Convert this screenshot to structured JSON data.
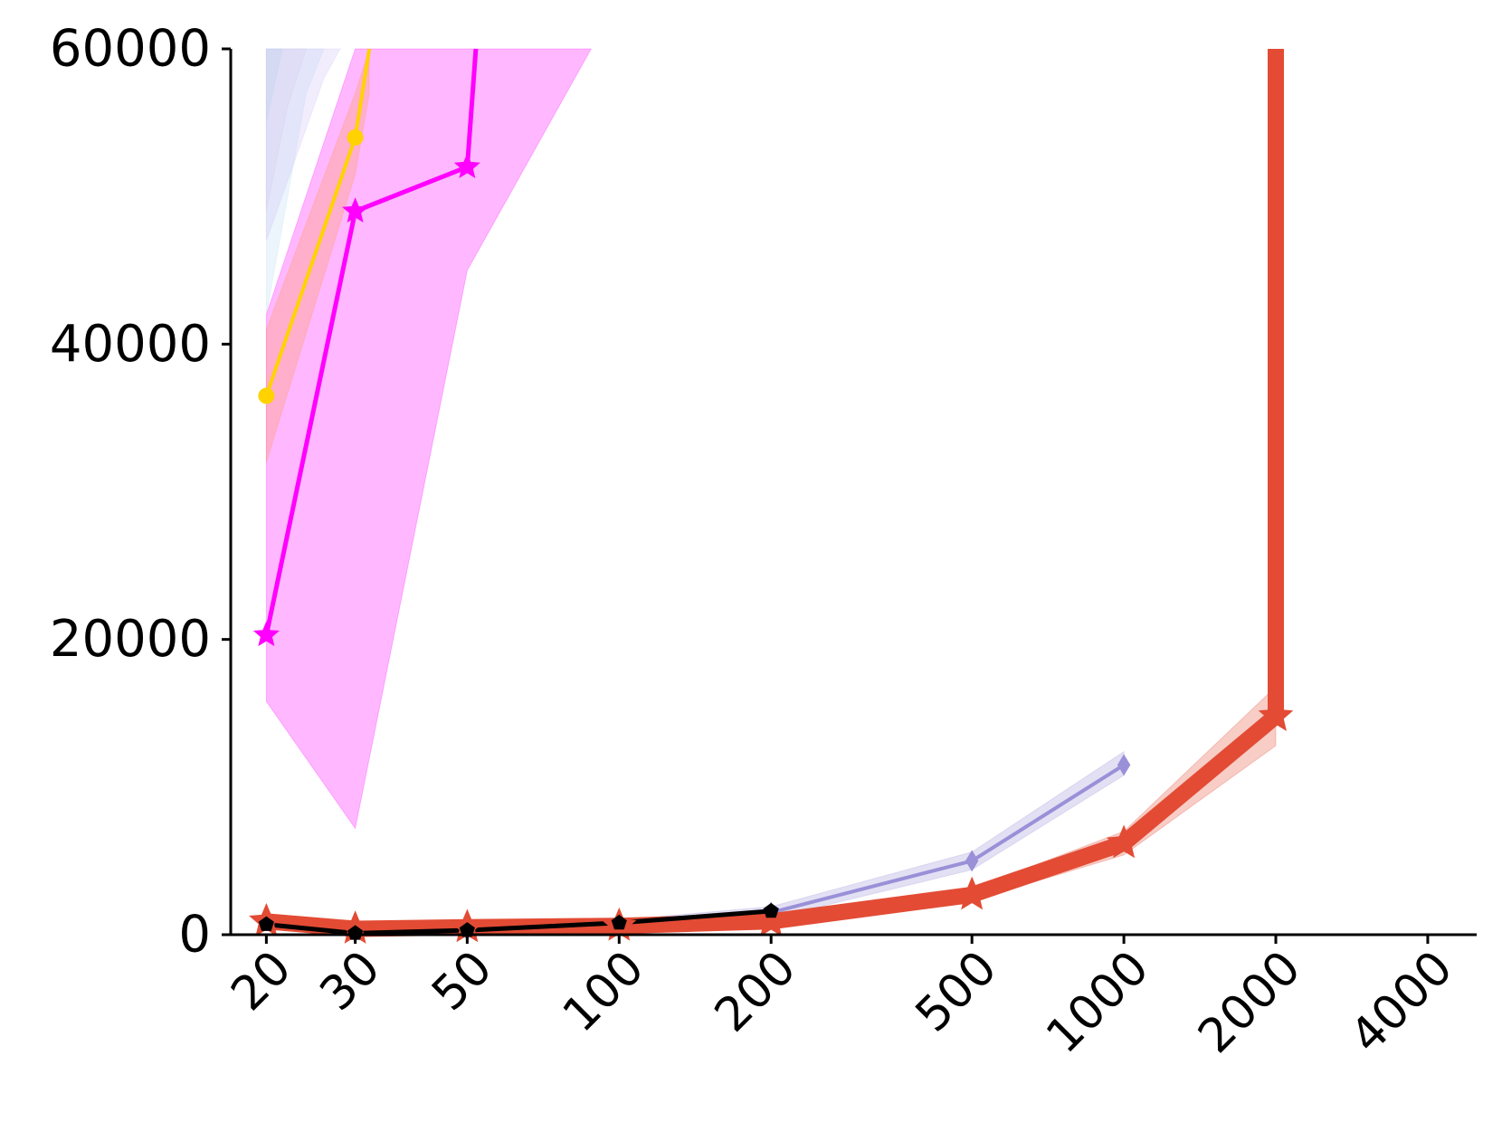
{
  "chart_data": {
    "type": "line",
    "title": "",
    "xlabel": "",
    "ylabel": "",
    "x_scale": "log",
    "xlim": [
      17,
      5000
    ],
    "ylim": [
      0,
      60000
    ],
    "grid": false,
    "x_ticks": [
      20,
      30,
      50,
      100,
      200,
      500,
      1000,
      2000,
      4000
    ],
    "x_tick_labels": [
      "20",
      "30",
      "50",
      "100",
      "200",
      "500",
      "1000",
      "2000",
      "4000"
    ],
    "y_ticks": [
      0,
      20000,
      40000,
      60000
    ],
    "y_tick_labels": [
      "0",
      "20000",
      "40000",
      "60000"
    ],
    "series": [
      {
        "color": "#9ad7e6",
        "marker": "none",
        "line": false,
        "band_x": [
          20,
          21.5
        ],
        "band_low": [
          55000,
          60000
        ],
        "band_high": [
          60000,
          60000
        ],
        "x": [],
        "values": []
      },
      {
        "color": "#bcdcf5",
        "marker": "none",
        "line": false,
        "band_x": [
          20,
          24,
          26
        ],
        "band_low": [
          42000,
          57000,
          60000
        ],
        "band_high": [
          60000,
          60000,
          60000
        ],
        "x": [],
        "values": []
      },
      {
        "color": "#d8cfe8",
        "marker": "none",
        "line": false,
        "band_x": [
          20,
          22,
          24
        ],
        "band_low": [
          49000,
          56000,
          60000
        ],
        "band_high": [
          60000,
          60000,
          60000
        ],
        "x": [],
        "values": []
      },
      {
        "color": "#cdbff5",
        "marker": "none",
        "line": false,
        "band_x": [
          20,
          26,
          28
        ],
        "band_low": [
          47000,
          58000,
          60000
        ],
        "band_high": [
          60000,
          60000,
          60000
        ],
        "x": [],
        "values": []
      },
      {
        "color": "#ffd200",
        "marker": "circle",
        "line": true,
        "line_width": 4,
        "x": [
          20,
          30,
          32
        ],
        "values": [
          36500,
          54000,
          60000
        ],
        "marker_mask": [
          true,
          true,
          false
        ],
        "band_x": [
          20,
          30,
          32
        ],
        "band_low": [
          32000,
          51500,
          57000
        ],
        "band_high": [
          41000,
          57000,
          60000
        ]
      },
      {
        "color": "#ff00ff",
        "marker": "star",
        "line": true,
        "line_width": 5,
        "x": [
          20,
          30,
          50,
          52
        ],
        "values": [
          20300,
          49000,
          52000,
          60000
        ],
        "marker_mask": [
          true,
          true,
          true,
          false
        ],
        "band_x": [
          20,
          30,
          50,
          88
        ],
        "band_low": [
          15800,
          7200,
          45000,
          60000
        ],
        "band_high": [
          42000,
          60000,
          60000,
          60000
        ]
      },
      {
        "color": "#9a90d8",
        "marker": "diamond",
        "line": true,
        "line_width": 4,
        "x": [
          20,
          30,
          50,
          100,
          200,
          500,
          1000
        ],
        "values": [
          1000,
          200,
          300,
          700,
          1500,
          5000,
          11500
        ],
        "band_x": [
          20,
          30,
          50,
          100,
          200,
          500,
          1000
        ],
        "band_low": [
          600,
          0,
          100,
          400,
          1100,
          4400,
          10800
        ],
        "band_high": [
          1400,
          400,
          500,
          1000,
          1900,
          5600,
          12400
        ]
      },
      {
        "color": "#e34b34",
        "marker": "star",
        "line": true,
        "line_width": 18,
        "x": [
          20,
          30,
          50,
          100,
          200,
          500,
          1000,
          2000,
          2000
        ],
        "values": [
          900,
          400,
          500,
          600,
          900,
          2700,
          6200,
          14800,
          60000
        ],
        "marker_mask": [
          true,
          true,
          true,
          true,
          true,
          true,
          true,
          true,
          false
        ],
        "band_x": [
          20,
          30,
          50,
          100,
          200,
          500,
          1000,
          2000
        ],
        "band_low": [
          500,
          200,
          300,
          400,
          700,
          2300,
          5400,
          12800
        ],
        "band_high": [
          1300,
          600,
          700,
          800,
          1100,
          3100,
          7000,
          16800
        ]
      },
      {
        "color": "#000000",
        "marker": "pentagon",
        "line": true,
        "line_width": 5,
        "x": [
          20,
          30,
          50,
          100,
          200
        ],
        "values": [
          700,
          100,
          300,
          800,
          1600
        ]
      }
    ]
  }
}
